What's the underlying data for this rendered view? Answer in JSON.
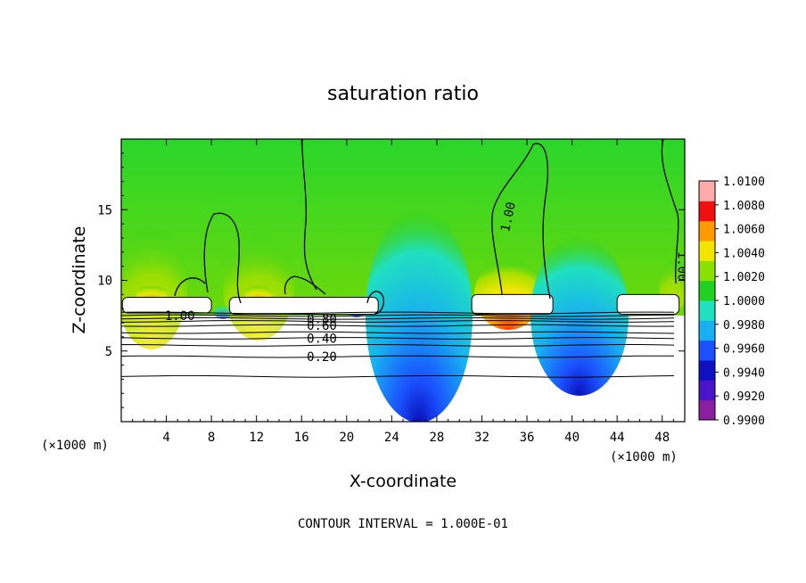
{
  "chart_data": {
    "type": "heatmap",
    "title": "saturation ratio",
    "xlabel": "X-coordinate",
    "ylabel": "Z-coordinate",
    "x_unit_note": "(×1000 m)",
    "xlim": [
      0,
      50
    ],
    "ylim": [
      0,
      20
    ],
    "x_ticks": [
      4,
      8,
      12,
      16,
      20,
      24,
      28,
      32,
      36,
      40,
      44,
      48
    ],
    "y_ticks": [
      5,
      10,
      15
    ],
    "colorbar": {
      "min": 0.99,
      "max": 1.01,
      "labels": [
        "1.0100",
        "1.0080",
        "1.0060",
        "1.0040",
        "1.0020",
        "1.0000",
        "0.9980",
        "0.9960",
        "0.9940",
        "0.9920",
        "0.9900"
      ],
      "colors": [
        "#8a1fa0",
        "#4a14c8",
        "#1010c0",
        "#1a50ff",
        "#18b0f0",
        "#20e0c0",
        "#22d022",
        "#8ae000",
        "#f2e600",
        "#ff9a00",
        "#f01010",
        "#ffaaaa"
      ]
    },
    "contour_interval": "1.000E-01",
    "contour_labels": [
      {
        "text": "1.00",
        "x": 34.3,
        "z": 14.5,
        "angle": -78
      },
      {
        "text": "1.00",
        "x": 49.8,
        "z": 11.0,
        "angle": 90
      },
      {
        "text": "1.00",
        "x": 5.2,
        "z": 7.5,
        "angle": 0
      },
      {
        "text": "0.80",
        "x": 17.8,
        "z": 7.3,
        "angle": 0
      },
      {
        "text": "0.60",
        "x": 17.8,
        "z": 6.8,
        "angle": 0
      },
      {
        "text": "0.40",
        "x": 17.8,
        "z": 5.9,
        "angle": 0
      },
      {
        "text": "0.20",
        "x": 17.8,
        "z": 4.6,
        "angle": 0
      }
    ],
    "cloud_regions": [
      {
        "x0": 0.1,
        "x1": 8.0,
        "z0": 7.7,
        "z1": 8.8
      },
      {
        "x0": 9.6,
        "x1": 22.8,
        "z0": 7.6,
        "z1": 8.8
      },
      {
        "x0": 31.1,
        "x1": 38.3,
        "z0": 7.6,
        "z1": 9.0
      },
      {
        "x0": 44.0,
        "x1": 49.5,
        "z0": 7.6,
        "z1": 9.0
      }
    ]
  },
  "footer": "CONTOUR INTERVAL = 1.000E-01"
}
